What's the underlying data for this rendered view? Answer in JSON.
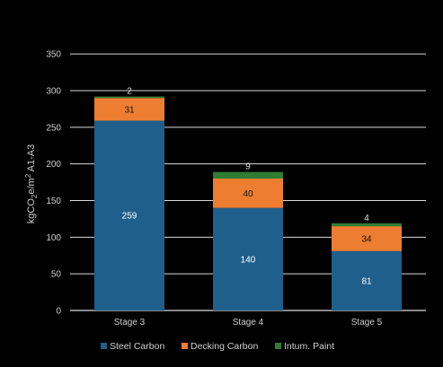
{
  "chart_data": {
    "type": "bar",
    "stacked": true,
    "categories": [
      "Stage 3",
      "Stage 4",
      "Stage 5"
    ],
    "series": [
      {
        "name": "Steel Carbon",
        "values": [
          259,
          140,
          81
        ],
        "color": "#1f5f8b"
      },
      {
        "name": "Decking Carbon",
        "values": [
          31,
          40,
          34
        ],
        "color": "#ed7d31"
      },
      {
        "name": "Intum. Paint",
        "values": [
          2,
          9,
          4
        ],
        "color": "#2e7d32"
      }
    ],
    "ylabel_parts": [
      "kgCO",
      "2",
      "e/m",
      "2",
      " A1-A3"
    ],
    "ylim": [
      0,
      360
    ],
    "yticks": [
      0,
      50,
      100,
      150,
      200,
      250,
      300,
      350
    ],
    "grid": true,
    "legend": "bottom",
    "colors": {
      "background": "#000000",
      "grid": "#d9d9d9",
      "text": "#cfcfcf",
      "label_on_dark": "#ffffff",
      "label_on_light": "#111111",
      "label_outside": "#dddddd"
    }
  }
}
